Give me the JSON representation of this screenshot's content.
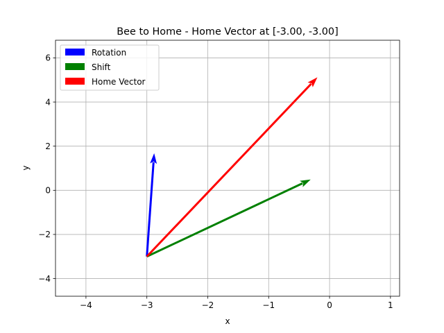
{
  "chart_data": {
    "type": "quiver",
    "title": "Bee to Home - Home Vector at [-3.00, -3.00]",
    "xlabel": "x",
    "ylabel": "y",
    "xlim": [
      -4.5,
      1.15
    ],
    "ylim": [
      -4.8,
      6.8
    ],
    "xticks": [
      -4,
      -3,
      -2,
      -1,
      0,
      1
    ],
    "yticks": [
      -4,
      -2,
      0,
      2,
      4,
      6
    ],
    "xtick_labels": [
      "−4",
      "−3",
      "−2",
      "−1",
      "0",
      "1"
    ],
    "ytick_labels": [
      "−4",
      "−2",
      "0",
      "2",
      "4",
      "6"
    ],
    "grid": true,
    "legend_position": "top-left",
    "series": [
      {
        "name": "Rotation",
        "color": "#0000ff",
        "start": [
          -3.0,
          -3.0
        ],
        "end": [
          -2.88,
          1.68
        ]
      },
      {
        "name": "Shift",
        "color": "#008000",
        "start": [
          -3.0,
          -3.0
        ],
        "end": [
          -0.31,
          0.49
        ]
      },
      {
        "name": "Home Vector",
        "color": "#ff0000",
        "start": [
          -3.0,
          -3.0
        ],
        "end": [
          -0.2,
          5.12
        ]
      }
    ]
  }
}
